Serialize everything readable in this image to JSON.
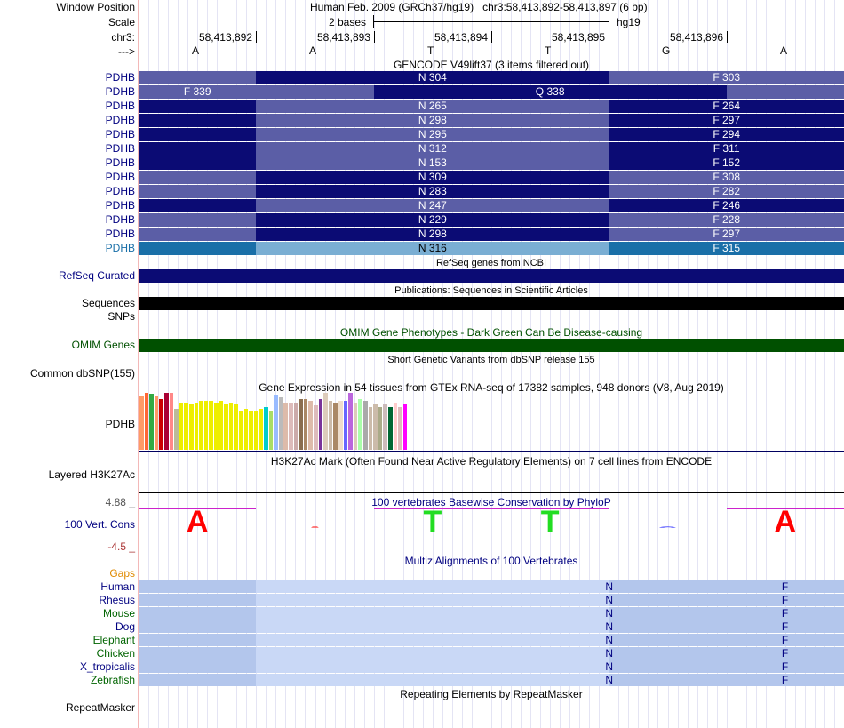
{
  "header": {
    "window_label": "Window Position",
    "assembly": "Human Feb. 2009 (GRCh37/hg19)",
    "position": "chr3:58,413,892-58,413,897 (6 bp)",
    "scale_label": "Scale",
    "scale_value": "2 bases",
    "scale_db": "hg19",
    "chrom_label": "chr3:",
    "strand_label": "--->",
    "coords": [
      "58,413,892",
      "58,413,893",
      "58,413,894",
      "58,413,895",
      "58,413,896"
    ],
    "bases": [
      "A",
      "A",
      "T",
      "T",
      "G",
      "A"
    ]
  },
  "gencode": {
    "title": "GENCODE V49lift37 (3 items filtered out)",
    "rows": [
      {
        "label": "PDHB",
        "cells": [
          "",
          "N 304",
          "F 303"
        ],
        "colors": [
          "#5b5ea6",
          "#0b0b74",
          "#5b5ea6"
        ]
      },
      {
        "label": "PDHB",
        "cells": [
          "F 339",
          "",
          "Q 338",
          ""
        ],
        "colors": [
          "#5b5ea6",
          "#5b5ea6",
          "#0b0b74",
          "#5b5ea6"
        ],
        "variant": "alt"
      },
      {
        "label": "PDHB",
        "cells": [
          "",
          "N 265",
          "F 264"
        ],
        "colors": [
          "#0b0b74",
          "#5b5ea6",
          "#0b0b74"
        ]
      },
      {
        "label": "PDHB",
        "cells": [
          "",
          "N 298",
          "F 297"
        ],
        "colors": [
          "#0b0b74",
          "#5b5ea6",
          "#0b0b74"
        ]
      },
      {
        "label": "PDHB",
        "cells": [
          "",
          "N 295",
          "F 294"
        ],
        "colors": [
          "#0b0b74",
          "#5b5ea6",
          "#0b0b74"
        ]
      },
      {
        "label": "PDHB",
        "cells": [
          "",
          "N 312",
          "F 311"
        ],
        "colors": [
          "#0b0b74",
          "#5b5ea6",
          "#0b0b74"
        ]
      },
      {
        "label": "PDHB",
        "cells": [
          "",
          "N 153",
          "F 152"
        ],
        "colors": [
          "#0b0b74",
          "#5b5ea6",
          "#0b0b74"
        ]
      },
      {
        "label": "PDHB",
        "cells": [
          "",
          "N 309",
          "F 308"
        ],
        "colors": [
          "#5b5ea6",
          "#0b0b74",
          "#5b5ea6"
        ]
      },
      {
        "label": "PDHB",
        "cells": [
          "",
          "N 283",
          "F 282"
        ],
        "colors": [
          "#5b5ea6",
          "#0b0b74",
          "#5b5ea6"
        ]
      },
      {
        "label": "PDHB",
        "cells": [
          "",
          "N 247",
          "F 246"
        ],
        "colors": [
          "#0b0b74",
          "#5b5ea6",
          "#0b0b74"
        ]
      },
      {
        "label": "PDHB",
        "cells": [
          "",
          "N 229",
          "F 228"
        ],
        "colors": [
          "#5b5ea6",
          "#0b0b74",
          "#5b5ea6"
        ]
      },
      {
        "label": "PDHB",
        "cells": [
          "",
          "N 298",
          "F 297"
        ],
        "colors": [
          "#5b5ea6",
          "#0b0b74",
          "#5b5ea6"
        ]
      },
      {
        "label": "PDHB",
        "cells": [
          "",
          "N 316",
          "F 315"
        ],
        "colors": [
          "#1a6fa8",
          "#7aaed3",
          "#1a6fa8"
        ],
        "highlight": true
      }
    ]
  },
  "refseq": {
    "title": "RefSeq genes from NCBI",
    "label": "RefSeq Curated",
    "color": "#0b0b74"
  },
  "publications": {
    "title": "Publications: Sequences in Scientific Articles",
    "label": "Sequences"
  },
  "snps_label": "SNPs",
  "omim": {
    "title": "OMIM Gene Phenotypes - Dark Green Can Be Disease-causing",
    "label": "OMIM Genes",
    "color": "#005000"
  },
  "dbsnp": {
    "title": "Short Genetic Variants from dbSNP release 155",
    "label": "Common dbSNP(155)"
  },
  "gtex": {
    "title": "Gene Expression in 54 tissues from GTEx RNA-seq of 17382 samples, 948 donors (V8, Aug 2019)",
    "label": "PDHB",
    "colors": [
      "#ff9a66",
      "#ff6633",
      "#33aa44",
      "#ff9a66",
      "#cc0000",
      "#aa0033",
      "#ff8888",
      "#bbbb99",
      "#eeee00",
      "#eeee00",
      "#eeee00",
      "#eeee00",
      "#eeee00",
      "#eeee00",
      "#eeee00",
      "#eeee00",
      "#eeee00",
      "#eeee00",
      "#eeee00",
      "#eeee00",
      "#eeee00",
      "#eeee00",
      "#eeee00",
      "#eeee00",
      "#eeee00",
      "#00cccc",
      "#aadd66",
      "#99bbff",
      "#bbbbbb",
      "#ddbbaa",
      "#ddbbbb",
      "#ccaaaa",
      "#8a6e50",
      "#aa8866",
      "#ddbbaa",
      "#ddbbbb",
      "#7a3399",
      "#ddccbb",
      "#ccbbaa",
      "#aa8866",
      "#eeddcc",
      "#6666ff",
      "#bb66dd",
      "#ddccbb",
      "#aaffaa",
      "#aaaaaa",
      "#ccbbaa",
      "#ccbbaa",
      "#aaaa88",
      "#ccbbbb",
      "#006633",
      "#ffcccc",
      "#ddbbbb",
      "#ff00ff"
    ],
    "values": [
      0.55,
      0.58,
      0.57,
      0.55,
      0.52,
      0.58,
      0.58,
      0.42,
      0.48,
      0.48,
      0.46,
      0.48,
      0.5,
      0.5,
      0.5,
      0.48,
      0.5,
      0.46,
      0.48,
      0.46,
      0.4,
      0.42,
      0.4,
      0.4,
      0.42,
      0.44,
      0.4,
      0.56,
      0.54,
      0.48,
      0.48,
      0.48,
      0.52,
      0.52,
      0.5,
      0.45,
      0.52,
      0.58,
      0.5,
      0.48,
      0.5,
      0.5,
      0.58,
      0.48,
      0.52,
      0.5,
      0.44,
      0.46,
      0.44,
      0.46,
      0.44,
      0.48,
      0.44,
      0.46
    ]
  },
  "h3k27ac": {
    "title": "H3K27Ac Mark (Often Found Near Active Regulatory Elements) on 7 cell lines from ENCODE",
    "label": "Layered H3K27Ac"
  },
  "phylop": {
    "title": "100 vertebrates Basewise Conservation by PhyloP",
    "label": "100 Vert. Cons",
    "max_label": "4.88 _",
    "min_label": "-4.5 _",
    "logos": [
      {
        "base": "A",
        "color": "#ff0000",
        "score": 4.0,
        "size": "big"
      },
      {
        "base": "A",
        "color": "#ff0000",
        "score": -0.6,
        "size": "flat"
      },
      {
        "base": "T",
        "color": "#22dd22",
        "score": 3.2,
        "size": "big"
      },
      {
        "base": "T",
        "color": "#22dd22",
        "score": 3.2,
        "size": "big"
      },
      {
        "base": "G",
        "color": "#0000ff",
        "score": -0.6,
        "size": "flat"
      },
      {
        "base": "A",
        "color": "#ff0000",
        "score": 4.0,
        "size": "big"
      }
    ]
  },
  "multiz": {
    "title": "Multiz Alignments of 100 Vertebrates",
    "gaps_label": "Gaps",
    "species": [
      {
        "name": "Human",
        "color": "#000080"
      },
      {
        "name": "Rhesus",
        "color": "#000080"
      },
      {
        "name": "Mouse",
        "color": "#006400"
      },
      {
        "name": "Dog",
        "color": "#000080"
      },
      {
        "name": "Elephant",
        "color": "#006400"
      },
      {
        "name": "Chicken",
        "color": "#006400"
      },
      {
        "name": "X_tropicalis",
        "color": "#000080"
      },
      {
        "name": "Zebrafish",
        "color": "#006400"
      }
    ],
    "codons": [
      "N",
      "F"
    ]
  },
  "repeatmasker": {
    "title": "Repeating Elements by RepeatMasker",
    "label": "RepeatMasker"
  }
}
